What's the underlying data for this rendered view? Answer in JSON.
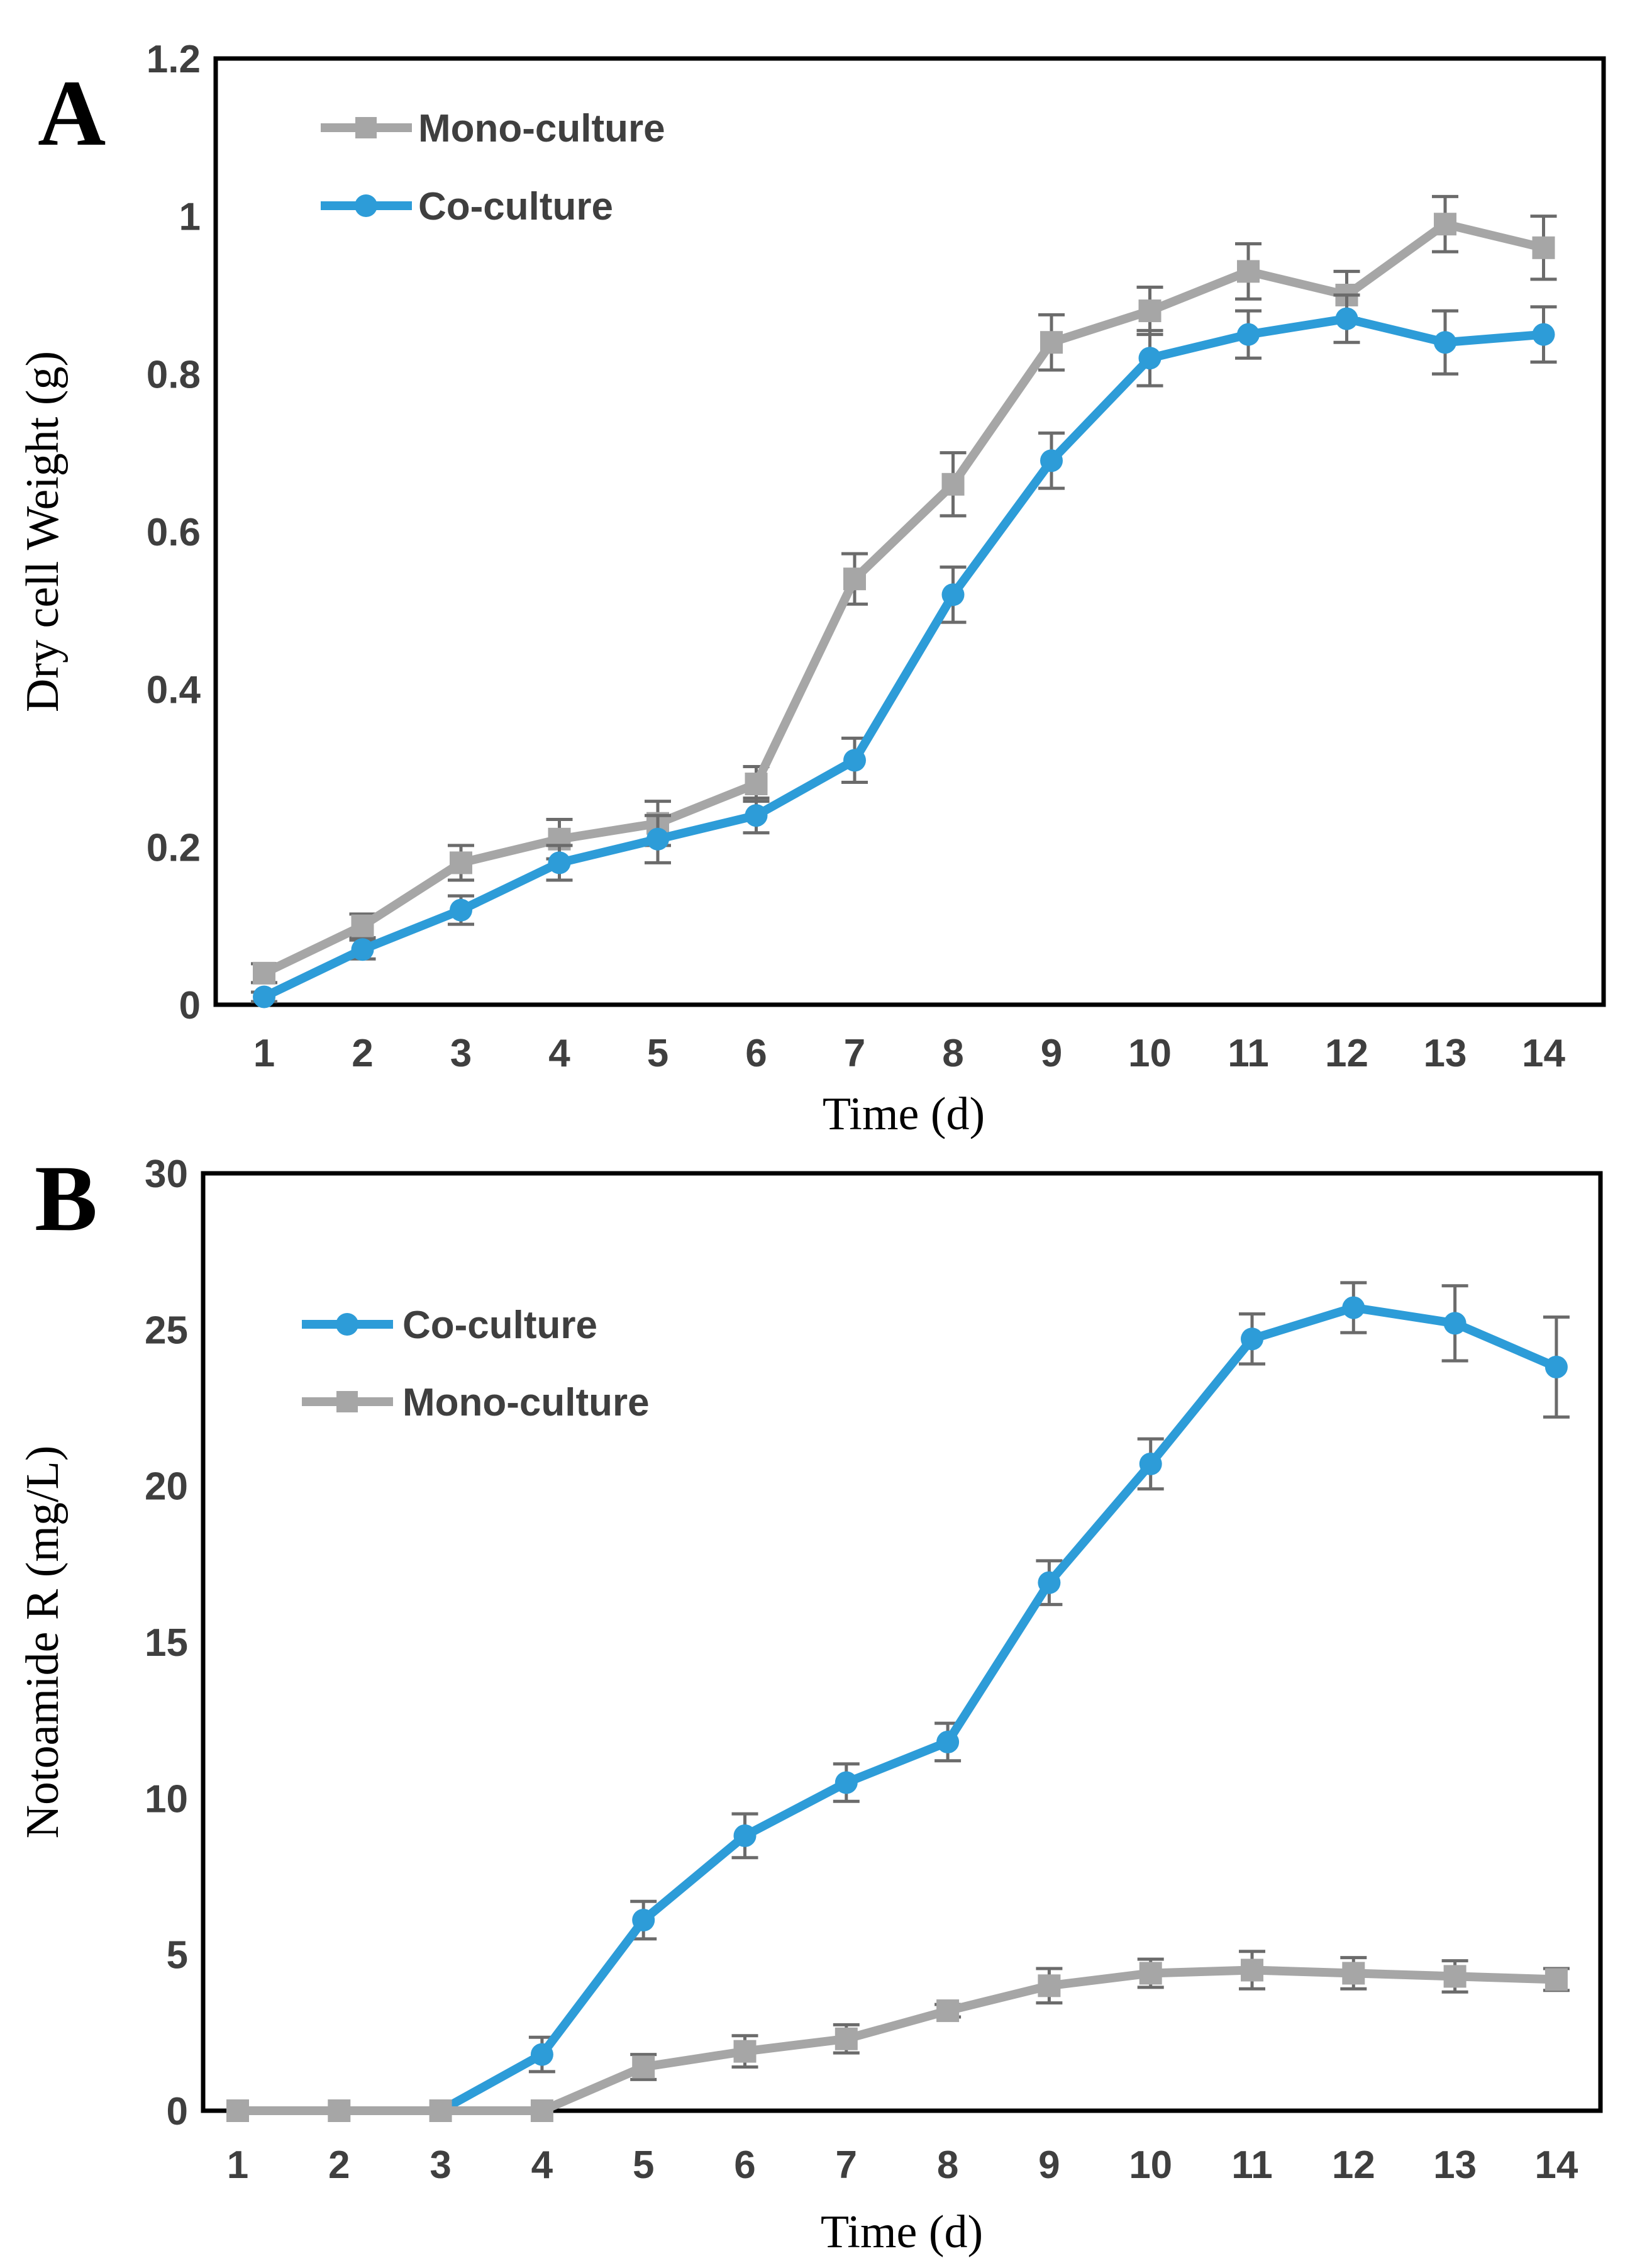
{
  "figure": {
    "background": "#ffffff"
  },
  "colors": {
    "co_culture": "#2D9CD8",
    "mono_culture": "#A6A6A6",
    "error_bar": "#6B6B6B",
    "axis": "#000000",
    "tick_label": "#3F3F3F"
  },
  "chart_data": [
    {
      "type": "line",
      "panel_letter": "A",
      "xlabel": "Time (d)",
      "ylabel": "Dry cell Weight (g)",
      "x": [
        1,
        2,
        3,
        4,
        5,
        6,
        7,
        8,
        9,
        10,
        11,
        12,
        13,
        14
      ],
      "xtick_labels": [
        "1",
        "2",
        "3",
        "4",
        "5",
        "6",
        "7",
        "8",
        "9",
        "10",
        "11",
        "12",
        "13",
        "14"
      ],
      "ylim": [
        0,
        1.2
      ],
      "yticks": [
        0,
        0.2,
        0.4,
        0.6,
        0.8,
        1,
        1.2
      ],
      "ytick_labels": [
        "0",
        "0.2",
        "0.4",
        "0.6",
        "0.8",
        "1",
        "1.2"
      ],
      "grid": false,
      "error_bars": true,
      "legend_position": "top-left-inside",
      "series": [
        {
          "name": "Mono-culture",
          "marker": "square",
          "color_key": "mono_culture",
          "values": [
            0.04,
            0.1,
            0.18,
            0.21,
            0.23,
            0.28,
            0.54,
            0.66,
            0.84,
            0.88,
            0.93,
            0.9,
            0.99,
            0.96
          ],
          "errors": [
            0.012,
            0.015,
            0.022,
            0.025,
            0.028,
            0.022,
            0.032,
            0.04,
            0.035,
            0.03,
            0.035,
            0.03,
            0.035,
            0.04
          ]
        },
        {
          "name": "Co-culture",
          "marker": "circle",
          "color_key": "co_culture",
          "values": [
            0.01,
            0.07,
            0.12,
            0.18,
            0.21,
            0.24,
            0.31,
            0.52,
            0.69,
            0.82,
            0.85,
            0.87,
            0.84,
            0.85
          ],
          "errors": [
            0.006,
            0.012,
            0.018,
            0.022,
            0.03,
            0.022,
            0.028,
            0.035,
            0.035,
            0.035,
            0.03,
            0.03,
            0.04,
            0.035
          ]
        }
      ]
    },
    {
      "type": "line",
      "panel_letter": "B",
      "xlabel": "Time (d)",
      "ylabel": "Notoamide R (mg/L)",
      "x": [
        1,
        2,
        3,
        4,
        5,
        6,
        7,
        8,
        9,
        10,
        11,
        12,
        13,
        14
      ],
      "xtick_labels": [
        "1",
        "2",
        "3",
        "4",
        "5",
        "6",
        "7",
        "8",
        "9",
        "10",
        "11",
        "12",
        "13",
        "14"
      ],
      "ylim": [
        0,
        30
      ],
      "yticks": [
        0,
        5,
        10,
        15,
        20,
        25,
        30
      ],
      "ytick_labels": [
        "0",
        "5",
        "10",
        "15",
        "20",
        "25",
        "30"
      ],
      "grid": false,
      "error_bars": true,
      "legend_position": "top-left-inside",
      "series": [
        {
          "name": "Co-culture",
          "marker": "circle",
          "color_key": "co_culture",
          "values": [
            0,
            0,
            0,
            1.8,
            6.1,
            8.8,
            10.5,
            11.8,
            16.9,
            20.7,
            24.7,
            25.7,
            25.2,
            23.8
          ],
          "errors": [
            0,
            0,
            0,
            0.55,
            0.6,
            0.7,
            0.6,
            0.6,
            0.7,
            0.8,
            0.8,
            0.8,
            1.2,
            1.6
          ]
        },
        {
          "name": "Mono-culture",
          "marker": "square",
          "color_key": "mono_culture",
          "values": [
            0,
            0,
            0,
            0,
            1.4,
            1.9,
            2.3,
            3.2,
            4.0,
            4.4,
            4.5,
            4.4,
            4.3,
            4.2
          ],
          "errors": [
            0,
            0,
            0,
            0,
            0.4,
            0.5,
            0.45,
            0.2,
            0.55,
            0.45,
            0.6,
            0.5,
            0.5,
            0.35
          ]
        }
      ]
    }
  ]
}
